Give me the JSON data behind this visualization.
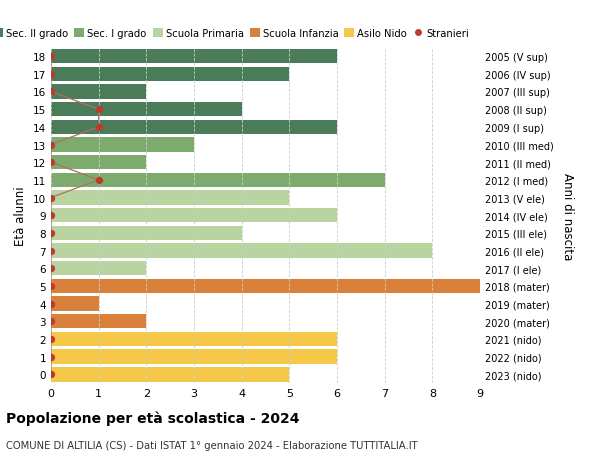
{
  "ages": [
    18,
    17,
    16,
    15,
    14,
    13,
    12,
    11,
    10,
    9,
    8,
    7,
    6,
    5,
    4,
    3,
    2,
    1,
    0
  ],
  "years": [
    "2005 (V sup)",
    "2006 (IV sup)",
    "2007 (III sup)",
    "2008 (II sup)",
    "2009 (I sup)",
    "2010 (III med)",
    "2011 (II med)",
    "2012 (I med)",
    "2013 (V ele)",
    "2014 (IV ele)",
    "2015 (III ele)",
    "2016 (II ele)",
    "2017 (I ele)",
    "2018 (mater)",
    "2019 (mater)",
    "2020 (mater)",
    "2021 (nido)",
    "2022 (nido)",
    "2023 (nido)"
  ],
  "bar_values": [
    6,
    5,
    2,
    4,
    6,
    3,
    2,
    7,
    5,
    6,
    4,
    8,
    2,
    9,
    1,
    2,
    6,
    6,
    5
  ],
  "bar_colors": [
    "#4a7c59",
    "#4a7c59",
    "#4a7c59",
    "#4a7c59",
    "#4a7c59",
    "#7dab6e",
    "#7dab6e",
    "#7dab6e",
    "#b8d4a0",
    "#b8d4a0",
    "#b8d4a0",
    "#b8d4a0",
    "#b8d4a0",
    "#d9813a",
    "#d9813a",
    "#d9813a",
    "#f5c84a",
    "#f5c84a",
    "#f5c84a"
  ],
  "stranieri_x": [
    0,
    0,
    0,
    1,
    1,
    0,
    0,
    1,
    0,
    0,
    0,
    0,
    0,
    0,
    0,
    0,
    0,
    0,
    0
  ],
  "legend_labels": [
    "Sec. II grado",
    "Sec. I grado",
    "Scuola Primaria",
    "Scuola Infanzia",
    "Asilo Nido",
    "Stranieri"
  ],
  "legend_colors": [
    "#4a7c59",
    "#7dab6e",
    "#b8d4a0",
    "#d9813a",
    "#f5c84a",
    "#c0392b"
  ],
  "title": "Popolazione per età scolastica - 2024",
  "subtitle": "COMUNE DI ALTILIA (CS) - Dati ISTAT 1° gennaio 2024 - Elaborazione TUTTITALIA.IT",
  "ylabel_left": "Età alunni",
  "ylabel_right": "Anni di nascita",
  "xlim": [
    0,
    9
  ],
  "background_color": "#ffffff",
  "grid_color": "#cccccc",
  "stranieri_color": "#c0392b",
  "stranieri_line_color": "#b07060"
}
